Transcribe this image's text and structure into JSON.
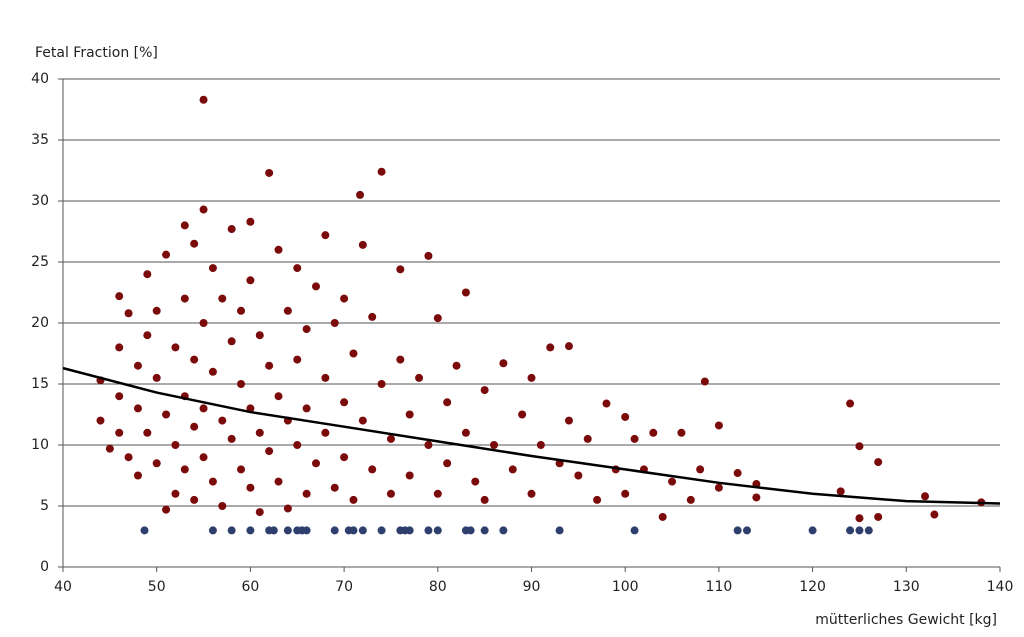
{
  "chart_data": {
    "type": "scatter",
    "ylabel": "Fetal Fraction [%]",
    "xlabel": "mütterliches Gewicht [kg]",
    "xlim": [
      40,
      140
    ],
    "xticks": [
      40,
      50,
      60,
      70,
      80,
      90,
      100,
      110,
      120,
      130,
      140
    ],
    "ylim": [
      0,
      40
    ],
    "yticks": [
      0,
      5,
      10,
      15,
      20,
      25,
      30,
      35,
      40
    ],
    "grid": true,
    "series": [
      {
        "color": "#7b0a0a",
        "x": [
          44,
          44,
          45,
          46,
          46,
          46,
          46,
          47,
          47,
          48,
          48,
          48,
          49,
          49,
          49,
          50,
          50,
          50,
          51,
          51,
          51,
          52,
          52,
          52,
          53,
          53,
          53,
          53,
          54,
          54,
          54,
          54,
          55,
          55,
          55,
          55,
          55,
          56,
          56,
          56,
          57,
          57,
          57,
          58,
          58,
          58,
          59,
          59,
          59,
          60,
          60,
          60,
          60,
          61,
          61,
          61,
          62,
          62,
          62,
          63,
          63,
          63,
          64,
          64,
          64,
          65,
          65,
          65,
          66,
          66,
          66,
          67,
          67,
          68,
          68,
          68,
          69,
          69,
          70,
          70,
          70,
          71,
          71,
          71.7,
          72,
          72,
          73,
          73,
          74,
          74,
          75,
          75,
          76,
          76,
          77,
          77,
          78,
          79,
          79,
          80,
          80,
          81,
          81,
          82,
          83,
          83,
          84,
          85,
          85,
          86,
          87,
          88,
          89,
          90,
          90,
          91,
          92,
          93,
          94,
          94,
          95,
          96,
          97,
          98,
          99,
          100,
          100,
          101,
          102,
          103,
          104,
          105,
          106,
          107,
          108,
          108.5,
          110,
          110,
          112,
          114,
          114,
          123,
          124,
          125,
          125,
          127,
          127,
          132,
          133,
          138
        ],
        "values": [
          15.3,
          12,
          9.7,
          22.2,
          18,
          14,
          11,
          20.8,
          9,
          7.5,
          13,
          16.5,
          24,
          19,
          11,
          21,
          15.5,
          8.5,
          25.6,
          4.7,
          12.5,
          18,
          10,
          6,
          28,
          22,
          14,
          8,
          26.5,
          17,
          11.5,
          5.5,
          38.3,
          29.3,
          20,
          13,
          9,
          24.5,
          16,
          7,
          22,
          12,
          5,
          27.7,
          18.5,
          10.5,
          15,
          8,
          21,
          28.3,
          23.5,
          13,
          6.5,
          19,
          11,
          4.5,
          32.3,
          16.5,
          9.5,
          26,
          14,
          7,
          21,
          12,
          4.8,
          24.5,
          17,
          10,
          19.5,
          13,
          6,
          23,
          8.5,
          27.2,
          15.5,
          11,
          20,
          6.5,
          22,
          13.5,
          9,
          17.5,
          5.5,
          30.5,
          26.4,
          12,
          20.5,
          8,
          32.4,
          15,
          10.5,
          6,
          24.4,
          17,
          12.5,
          7.5,
          15.5,
          25.5,
          10,
          20.4,
          6,
          13.5,
          8.5,
          16.5,
          22.5,
          11,
          7,
          14.5,
          5.5,
          10,
          16.7,
          8,
          12.5,
          15.5,
          6,
          10,
          18,
          8.5,
          18.1,
          12,
          7.5,
          10.5,
          5.5,
          13.4,
          8,
          12.3,
          6,
          10.5,
          8,
          11,
          4.1,
          7,
          11,
          5.5,
          8,
          15.2,
          11.6,
          6.5,
          7.7,
          6.8,
          5.7,
          6.2,
          13.4,
          9.9,
          4,
          8.6,
          4.1,
          5.8,
          4.3,
          5.3
        ]
      },
      {
        "color": "#2e3f6e",
        "x": [
          48.7,
          56,
          58,
          60,
          62,
          62.5,
          64,
          65,
          65.5,
          66,
          69,
          70.5,
          71,
          72,
          74,
          76,
          76.5,
          77,
          79,
          80,
          83,
          83.5,
          85,
          87,
          93,
          101,
          112,
          113,
          120,
          124,
          125,
          126
        ],
        "values": [
          3,
          3,
          3,
          3,
          3,
          3,
          3,
          3,
          3,
          3,
          3,
          3,
          3,
          3,
          3,
          3,
          3,
          3,
          3,
          3,
          3,
          3,
          3,
          3,
          3,
          3,
          3,
          3,
          3,
          3,
          3,
          3
        ]
      },
      {
        "color": "#000000",
        "line": true,
        "x": [
          40,
          50,
          60,
          70,
          80,
          90,
          100,
          110,
          120,
          130,
          140
        ],
        "values": [
          16.3,
          14.3,
          12.7,
          11.5,
          10.3,
          9.1,
          8,
          6.9,
          6,
          5.4,
          5.2
        ]
      }
    ]
  }
}
